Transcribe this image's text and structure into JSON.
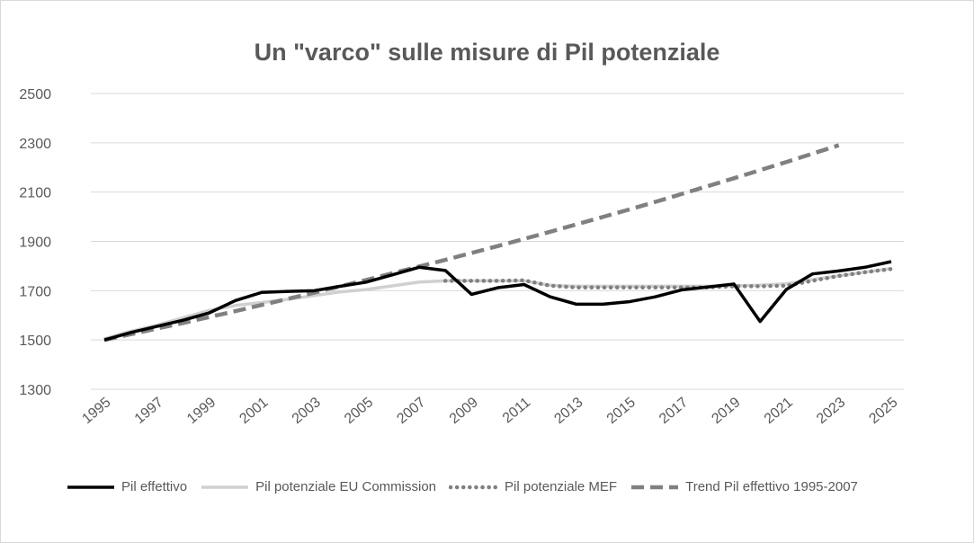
{
  "chart_data": {
    "type": "line",
    "title": "Un \"varco\" sulle misure di Pil potenziale",
    "x": [
      1995,
      1996,
      1997,
      1998,
      1999,
      2000,
      2001,
      2002,
      2003,
      2004,
      2005,
      2006,
      2007,
      2008,
      2009,
      2010,
      2011,
      2012,
      2013,
      2014,
      2015,
      2016,
      2017,
      2018,
      2019,
      2020,
      2021,
      2022,
      2023,
      2024,
      2025
    ],
    "x_tick_labels": [
      "1995",
      "1997",
      "1999",
      "2001",
      "2003",
      "2005",
      "2007",
      "2009",
      "2011",
      "2013",
      "2015",
      "2017",
      "2019",
      "2021",
      "2023",
      "2025"
    ],
    "y_tick_labels": [
      "1300",
      "1500",
      "1700",
      "1900",
      "2100",
      "2300",
      "2500"
    ],
    "ylim": [
      1300,
      2500
    ],
    "grid": true,
    "legend_position": "bottom",
    "series": [
      {
        "name": "Pil effettivo",
        "color": "#000000",
        "style": "solid",
        "values": [
          1500,
          1530,
          1555,
          1580,
          1610,
          1660,
          1693,
          1697,
          1700,
          1718,
          1735,
          1765,
          1795,
          1782,
          1685,
          1712,
          1725,
          1675,
          1645,
          1645,
          1655,
          1675,
          1703,
          1715,
          1727,
          1575,
          1705,
          1768,
          1780,
          1795,
          1818
        ]
      },
      {
        "name": "Pil potenziale EU Commission",
        "color": "#d0d0d0",
        "style": "solid",
        "values": [
          1505,
          1535,
          1560,
          1590,
          1620,
          1640,
          1652,
          1665,
          1680,
          1695,
          1705,
          1720,
          1735,
          1740,
          1740,
          1740,
          1740,
          1722,
          1718,
          1718,
          1718,
          1718,
          1718,
          1718,
          1720,
          1722,
          1728,
          1745,
          1760,
          1775,
          1790
        ]
      },
      {
        "name": "Pil potenziale MEF",
        "color": "#808080",
        "style": "dotted",
        "values": [
          null,
          null,
          null,
          null,
          null,
          null,
          null,
          null,
          null,
          null,
          null,
          null,
          null,
          1740,
          1740,
          1740,
          1742,
          1720,
          1713,
          1713,
          1713,
          1713,
          1713,
          1713,
          1718,
          1718,
          1720,
          1740,
          1760,
          1775,
          1788
        ]
      },
      {
        "name": "Trend Pil effettivo 1995-2007",
        "color": "#808080",
        "style": "dashed",
        "values": [
          1500,
          1523,
          1546,
          1569,
          1593,
          1617,
          1642,
          1667,
          1692,
          1718,
          1744,
          1771,
          1798,
          1825,
          1853,
          1881,
          1910,
          1939,
          1969,
          1999,
          2029,
          2060,
          2092,
          2124,
          2156,
          2189,
          2222,
          2256,
          2290,
          null,
          null
        ]
      }
    ]
  }
}
